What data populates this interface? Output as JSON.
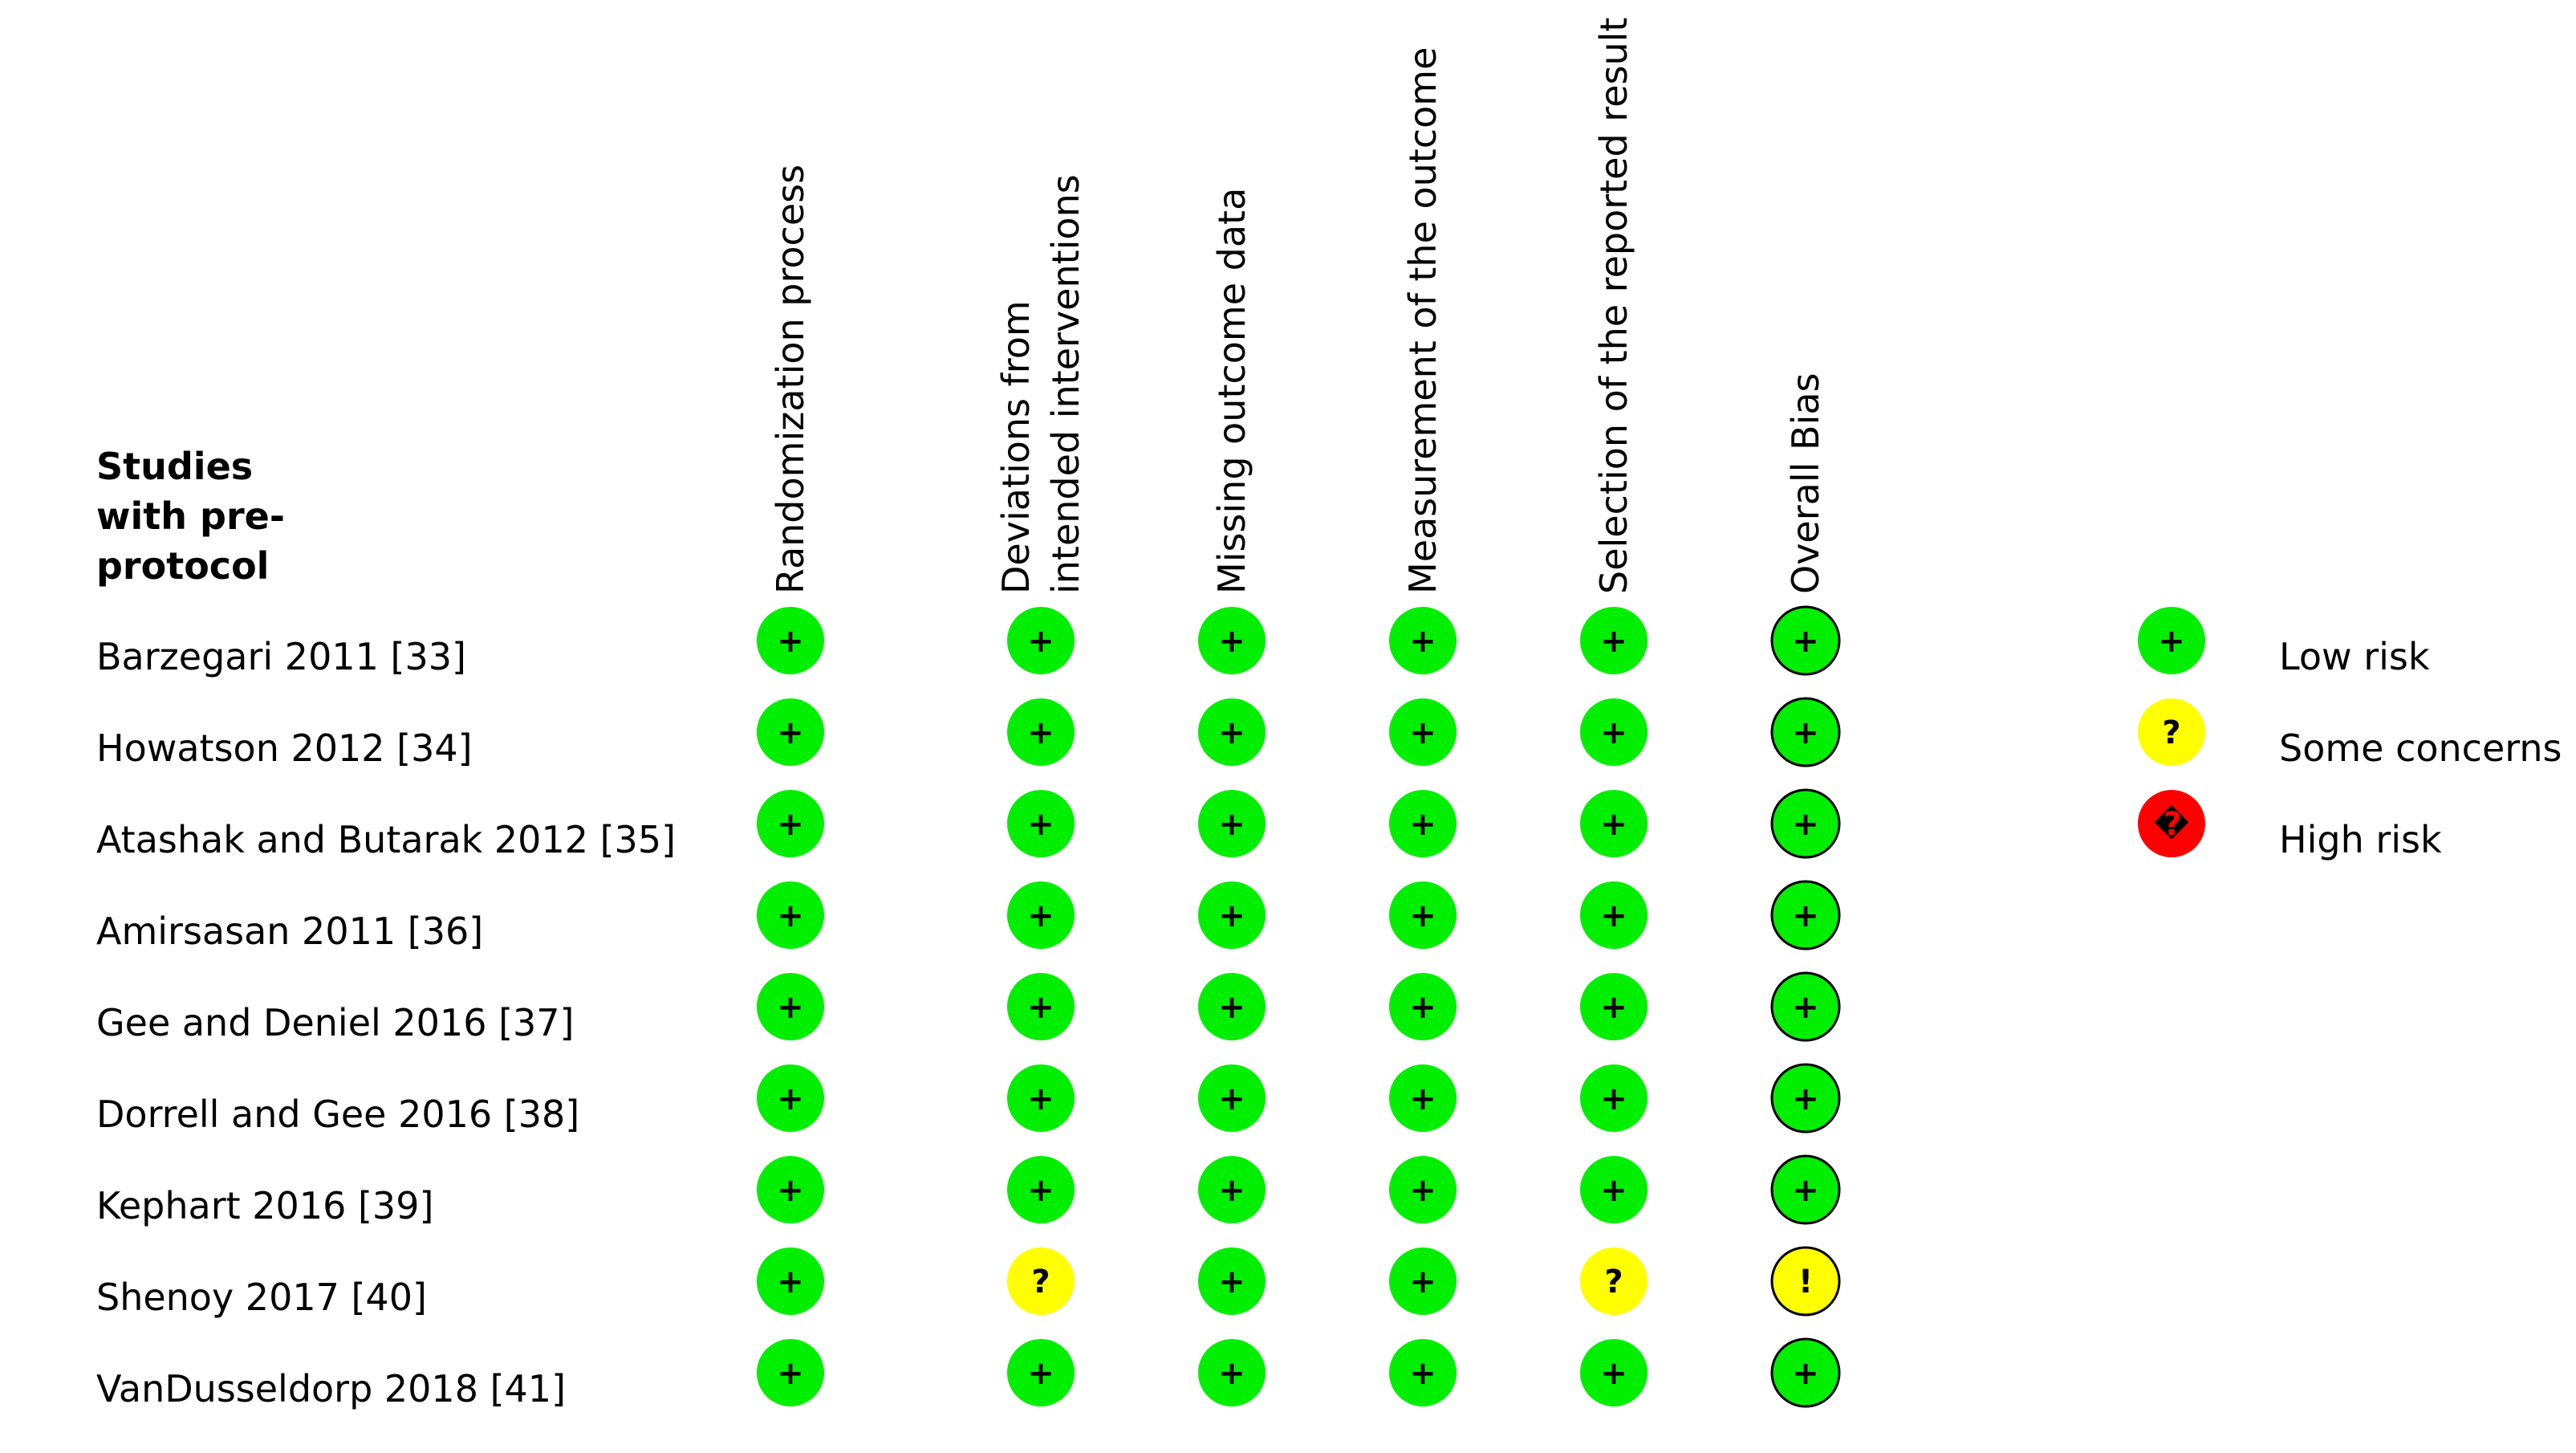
{
  "heading": "Studies with pre-protocol",
  "domains": [
    {
      "label": "Randomization process"
    },
    {
      "label": "Deviations from intended interventions"
    },
    {
      "label": "Missing outcome data"
    },
    {
      "label": "Measurement of the outcome"
    },
    {
      "label": "Selection of the reported result"
    },
    {
      "label": "Overall Bias"
    }
  ],
  "studies": [
    {
      "name": "Barzegari 2011 [33]",
      "judgements": [
        "low",
        "low",
        "low",
        "low",
        "low",
        "low"
      ]
    },
    {
      "name": "Howatson 2012 [34]",
      "judgements": [
        "low",
        "low",
        "low",
        "low",
        "low",
        "low"
      ]
    },
    {
      "name": "Atashak and Butarak 2012 [35]",
      "judgements": [
        "low",
        "low",
        "low",
        "low",
        "low",
        "low"
      ]
    },
    {
      "name": "Amirsasan 2011 [36]",
      "judgements": [
        "low",
        "low",
        "low",
        "low",
        "low",
        "low"
      ]
    },
    {
      "name": "Gee and Deniel 2016 [37]",
      "judgements": [
        "low",
        "low",
        "low",
        "low",
        "low",
        "low"
      ]
    },
    {
      "name": "Dorrell and Gee 2016 [38]",
      "judgements": [
        "low",
        "low",
        "low",
        "low",
        "low",
        "low"
      ]
    },
    {
      "name": "Kephart 2016 [39]",
      "judgements": [
        "low",
        "low",
        "low",
        "low",
        "low",
        "low"
      ]
    },
    {
      "name": "Shenoy 2017 [40]",
      "judgements": [
        "low",
        "some",
        "low",
        "low",
        "some",
        "overall-some"
      ]
    },
    {
      "name": "VanDusseldorp 2018 [41]",
      "judgements": [
        "low",
        "low",
        "low",
        "low",
        "low",
        "low"
      ]
    }
  ],
  "symbols": {
    "low": {
      "glyph": "+",
      "fill": "#00ee00"
    },
    "some": {
      "glyph": "?",
      "fill": "#ffff00"
    },
    "overall-some": {
      "glyph": "!",
      "fill": "#ffff00"
    },
    "high": {
      "glyph": "�",
      "fill": "#ff0000"
    }
  },
  "legend": [
    {
      "key": "low",
      "label": "Low risk"
    },
    {
      "key": "some",
      "label": "Some concerns"
    },
    {
      "key": "high",
      "label": "High risk"
    }
  ]
}
